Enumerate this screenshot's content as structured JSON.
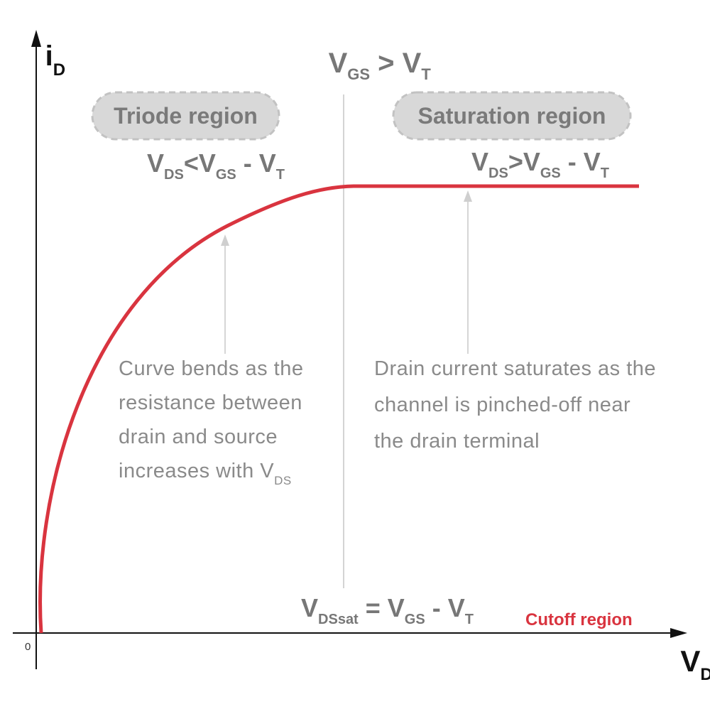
{
  "axes": {
    "y_label": {
      "main": "i",
      "sub": "D"
    },
    "x_label": {
      "main": "V",
      "sub": "DS"
    },
    "origin": "0"
  },
  "condition_top": {
    "a": "V",
    "a_sub": "GS",
    "op": " > ",
    "b": "V",
    "b_sub": "T"
  },
  "regions": {
    "triode": {
      "label": "Triode region",
      "cond": {
        "v1": "V",
        "v1_sub": "DS",
        "op": "<",
        "v2": "V",
        "v2_sub": "GS",
        "minus": " - ",
        "v3": "V",
        "v3_sub": "T"
      }
    },
    "saturation": {
      "label": "Saturation region",
      "cond": {
        "v1": "V",
        "v1_sub": "DS",
        "op": ">",
        "v2": "V",
        "v2_sub": "GS",
        "minus": " - ",
        "v3": "V",
        "v3_sub": "T"
      }
    },
    "cutoff": {
      "label": "Cutoff region"
    }
  },
  "boundary": {
    "v1": "V",
    "v1_sub": "DSsat",
    "eq": " = ",
    "v2": "V",
    "v2_sub": "GS",
    "minus": " - ",
    "v3": "V",
    "v3_sub": "T"
  },
  "notes": {
    "triode": {
      "line1": "Curve bends as the",
      "line2": "resistance between",
      "line3": "drain and source",
      "line4": "increases with V",
      "line4_sub": "DS"
    },
    "saturation": {
      "line1": "Drain current saturates as the",
      "line2": "channel is pinched-off near",
      "line3": "the drain terminal"
    }
  },
  "colors": {
    "curve": "#d9343f",
    "text_gray": "#777777",
    "note_gray": "#8a8a8a",
    "pill_fill": "#d8d8d8",
    "pill_stroke": "#c2c2c2",
    "axis": "#111111"
  }
}
